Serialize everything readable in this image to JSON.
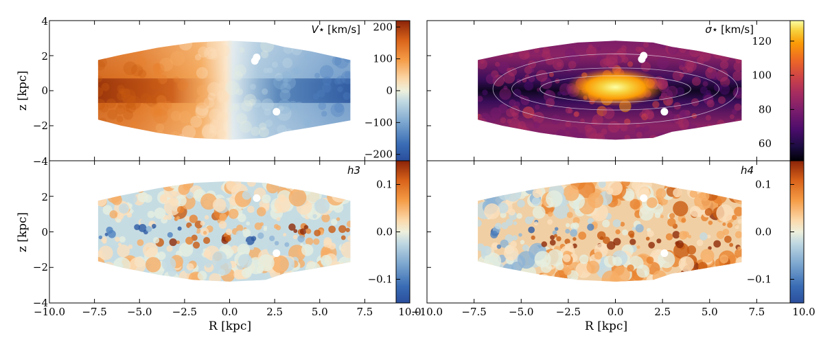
{
  "chart_data": [
    {
      "type": "heatmap",
      "panel": "top-left",
      "label": "V⋆ [km/s]",
      "label_symbol": "V⋆",
      "label_unit": "[km/s]",
      "xlabel": "",
      "ylabel": "z [kpc]",
      "xlim": [
        -10,
        10
      ],
      "ylim": [
        -4,
        4
      ],
      "yticks": [
        4,
        2,
        0,
        -2,
        -4
      ],
      "xticks": [],
      "colorbar": {
        "colormap": "diverging orange-blue (RdYlBu-like)",
        "range": [
          -220,
          220
        ],
        "ticks": [
          "200",
          "100",
          "0",
          "−100",
          "−200"
        ],
        "tick_values": [
          200,
          100,
          0,
          -100,
          -200
        ]
      },
      "masked_points": [
        {
          "R": 1.5,
          "z": 1.9
        },
        {
          "R": 1.4,
          "z": 1.7
        },
        {
          "R": 2.6,
          "z": -1.2
        }
      ],
      "description": "Rotation map: positive velocities (orange/red) at R<0, negative (blue) at R>0, strongest near the midplane"
    },
    {
      "type": "heatmap",
      "panel": "top-right",
      "label": "σ⋆ [km/s]",
      "label_symbol": "σ⋆",
      "label_unit": "[km/s]",
      "xlabel": "",
      "ylabel": "",
      "xlim": [
        -10,
        10
      ],
      "ylim": [
        -4,
        4
      ],
      "colorbar": {
        "colormap": "inferno",
        "range": [
          50,
          132
        ],
        "ticks": [
          "120",
          "100",
          "80",
          "60"
        ],
        "tick_values": [
          120,
          100,
          80,
          60
        ]
      },
      "contours": true,
      "masked_points": [
        {
          "R": 1.5,
          "z": 2.0
        },
        {
          "R": 1.4,
          "z": 1.8
        },
        {
          "R": 2.6,
          "z": -1.2
        }
      ],
      "description": "Velocity dispersion map: peak ~125 km/s at center, low (~55-65 km/s) along a dark midplane band"
    },
    {
      "type": "heatmap",
      "panel": "bottom-left",
      "label": "h3",
      "xlabel": "R [kpc]",
      "ylabel": "z [kpc]",
      "xlim": [
        -10,
        10
      ],
      "ylim": [
        -4,
        4
      ],
      "xticks": [
        "−10.0",
        "−7.5",
        "−5.0",
        "−2.5",
        "0.0",
        "2.5",
        "5.0",
        "7.5",
        "10.0"
      ],
      "xtick_values": [
        -10,
        -7.5,
        -5,
        -2.5,
        0,
        2.5,
        5,
        7.5,
        10
      ],
      "yticks": [
        "2",
        "0",
        "−2",
        "−4"
      ],
      "colorbar": {
        "colormap": "diverging orange-blue (RdYlBu-like)",
        "range": [
          -0.15,
          0.15
        ],
        "ticks": [
          "0.1",
          "0.0",
          "−0.1"
        ],
        "tick_values": [
          0.1,
          0.0,
          -0.1
        ]
      },
      "masked_points": [
        {
          "R": 1.5,
          "z": 1.9
        },
        {
          "R": 2.6,
          "z": -1.2
        }
      ],
      "description": "h3 map: anti-correlated with V⋆ near midplane; blue band at R<-3, orange band at R>3 and below midplane"
    },
    {
      "type": "heatmap",
      "panel": "bottom-right",
      "label": "h4",
      "xlabel": "R [kpc]",
      "ylabel": "",
      "xlim": [
        -10,
        10
      ],
      "ylim": [
        -4,
        4
      ],
      "xticks": [
        "−10.0",
        "−7.5",
        "−5.0",
        "−2.5",
        "0.0",
        "2.5",
        "5.0",
        "7.5",
        "10.0"
      ],
      "xtick_values": [
        -10,
        -7.5,
        -5,
        -2.5,
        0,
        2.5,
        5,
        7.5,
        10
      ],
      "colorbar": {
        "colormap": "diverging orange-blue (RdYlBu-like)",
        "range": [
          -0.15,
          0.15
        ],
        "ticks": [
          "0.1",
          "0.0",
          "−0.1"
        ],
        "tick_values": [
          0.1,
          0.0,
          -0.1
        ]
      },
      "masked_points": [
        {
          "R": 1.5,
          "z": 1.9
        },
        {
          "R": 2.6,
          "z": -1.2
        }
      ],
      "description": "h4 map: strong positive (dark red) band just below midplane at |R|<4, mostly positive outskirts"
    }
  ],
  "colors": {
    "diverging": [
      "#313695",
      "#2c62a8",
      "#5b8ec2",
      "#a9c8dc",
      "#dceadf",
      "#fbe3c0",
      "#f6a657",
      "#e4701e",
      "#b84c0a",
      "#7f1d07"
    ],
    "inferno": [
      "#000004",
      "#1b0c41",
      "#4a0c6b",
      "#781c6d",
      "#a52c60",
      "#cf4446",
      "#ed6925",
      "#fb9b06",
      "#f7d13d",
      "#fcffa4"
    ]
  }
}
